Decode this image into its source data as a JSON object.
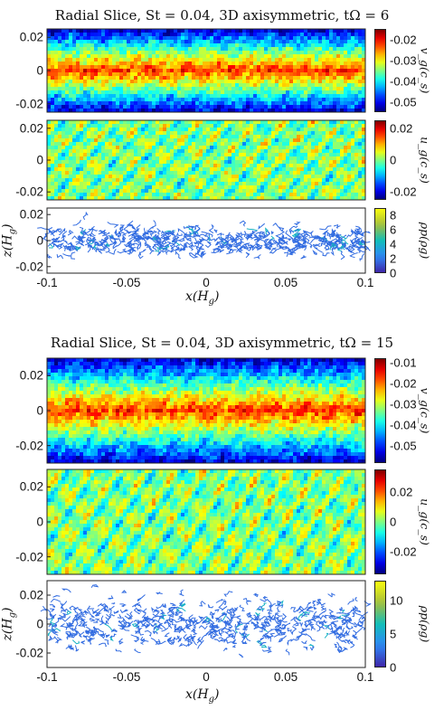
{
  "chart_data": [
    {
      "type": "heatmap",
      "title": "Radial Slice, St = 0.04, 3D axisymmetric, tΩ = 6",
      "xlabel": "x(H_g)",
      "xlabel_display": "x(H",
      "xlabel_sub": "g",
      "xlim": [
        -0.1,
        0.1
      ],
      "xticks": [
        "-0.1",
        "-0.05",
        "0",
        "0.05",
        "0.1"
      ],
      "panels": [
        {
          "name": "v_z",
          "ylabel": "",
          "yticks": [
            "0.02",
            "0",
            "-0.02"
          ],
          "ylim": [
            -0.025,
            0.025
          ],
          "colorbar_label": "v_g(c_s)",
          "colorbar_label_display": "v_g(c_s)",
          "colormap": "jet",
          "clim": [
            -0.055,
            -0.015
          ],
          "colorbar_ticks": [
            "-0.02",
            "-0.03",
            "-0.04",
            "-0.05"
          ]
        },
        {
          "name": "u_g",
          "ylabel": "",
          "yticks": [
            "0.02",
            "0",
            "-0.02"
          ],
          "ylim": [
            -0.025,
            0.025
          ],
          "colorbar_label": "u_g(c_s)",
          "colorbar_label_display": "u_g(c_s)",
          "colormap": "jet",
          "clim": [
            -0.025,
            0.025
          ],
          "colorbar_ticks": [
            "0.02",
            "0",
            "-0.02"
          ]
        },
        {
          "name": "rho_p",
          "ylabel": "z(H_g)",
          "ylabel_display": "z(H",
          "ylabel_sub": "g",
          "yticks": [
            "0.02",
            "0",
            "-0.02"
          ],
          "ylim": [
            -0.025,
            0.025
          ],
          "colorbar_label": "ρp(ρg)",
          "colorbar_label_display": "ρp(ρg)",
          "colormap": "parula",
          "clim": [
            0,
            9
          ],
          "colorbar_ticks": [
            "8",
            "6",
            "4",
            "2",
            "0"
          ]
        }
      ]
    },
    {
      "type": "heatmap",
      "title": "Radial Slice, St = 0.04, 3D axisymmetric, tΩ = 15",
      "xlabel": "x(H_g)",
      "xlabel_display": "x(H",
      "xlabel_sub": "g",
      "xlim": [
        -0.1,
        0.1
      ],
      "xticks": [
        "-0.1",
        "-0.05",
        "0",
        "0.05",
        "0.1"
      ],
      "panels": [
        {
          "name": "v_z",
          "ylabel": "",
          "yticks": [
            "0.02",
            "0",
            "-0.02"
          ],
          "ylim": [
            -0.03,
            0.03
          ],
          "colorbar_label": "v_g(c_s)",
          "colorbar_label_display": "v_g(c_s)",
          "colormap": "jet",
          "clim": [
            -0.058,
            -0.008
          ],
          "colorbar_ticks": [
            "-0.01",
            "-0.02",
            "-0.03",
            "-0.04",
            "-0.05"
          ]
        },
        {
          "name": "u_g",
          "ylabel": "",
          "yticks": [
            "0.02",
            "0",
            "-0.02"
          ],
          "ylim": [
            -0.03,
            0.03
          ],
          "colorbar_label": "u_g(c_s)",
          "colorbar_label_display": "u_g(c_s)",
          "colormap": "jet",
          "clim": [
            -0.035,
            0.035
          ],
          "colorbar_ticks": [
            "0.02",
            "0",
            "-0.02"
          ]
        },
        {
          "name": "rho_p",
          "ylabel": "z(H_g)",
          "ylabel_display": "z(H",
          "ylabel_sub": "g",
          "yticks": [
            "0.02",
            "0",
            "-0.02"
          ],
          "ylim": [
            -0.03,
            0.03
          ],
          "colorbar_label": "ρp(ρg)",
          "colorbar_label_display": "ρp(ρg)",
          "colormap": "parula",
          "clim": [
            0,
            13
          ],
          "colorbar_ticks": [
            "10",
            "5",
            "0"
          ]
        }
      ]
    }
  ]
}
